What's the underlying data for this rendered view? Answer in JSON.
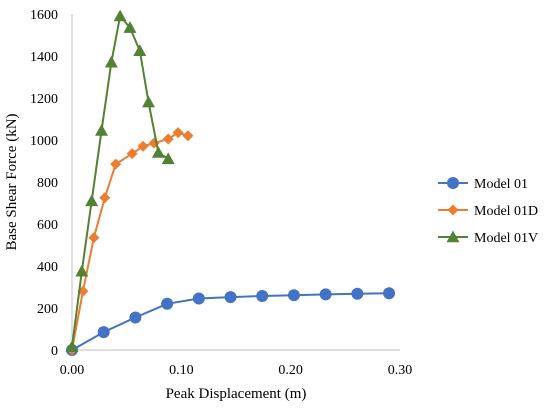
{
  "chart_data": {
    "type": "line",
    "title": "",
    "xlabel": "Peak Displacement (m)",
    "ylabel": "Base Shear Force (kN)",
    "xlim": [
      0,
      0.3
    ],
    "ylim": [
      0,
      1600
    ],
    "x_ticks": [
      0,
      0.1,
      0.2,
      0.3
    ],
    "x_tick_labels": [
      "0.00",
      "0.10",
      "0.20",
      "0.30"
    ],
    "y_ticks": [
      0,
      200,
      400,
      600,
      800,
      1000,
      1200,
      1400,
      1600
    ],
    "y_tick_labels": [
      "0",
      "200",
      "400",
      "600",
      "800",
      "1000",
      "1200",
      "1400",
      "1600"
    ],
    "grid": false,
    "legend_position": "right",
    "series": [
      {
        "name": "Model 01",
        "color": "#4472C4",
        "marker": "circle",
        "points": [
          [
            0.0,
            0
          ],
          [
            0.029,
            85
          ],
          [
            0.058,
            155
          ],
          [
            0.087,
            220
          ],
          [
            0.116,
            245
          ],
          [
            0.145,
            252
          ],
          [
            0.174,
            257
          ],
          [
            0.203,
            261
          ],
          [
            0.232,
            265
          ],
          [
            0.261,
            268
          ],
          [
            0.29,
            270
          ]
        ]
      },
      {
        "name": "Model 01D",
        "color": "#ED7D31",
        "marker": "diamond",
        "points": [
          [
            0.0,
            0
          ],
          [
            0.01,
            280
          ],
          [
            0.02,
            535
          ],
          [
            0.03,
            725
          ],
          [
            0.04,
            885
          ],
          [
            0.055,
            935
          ],
          [
            0.065,
            970
          ],
          [
            0.075,
            985
          ],
          [
            0.088,
            1005
          ],
          [
            0.097,
            1035
          ],
          [
            0.106,
            1020
          ]
        ]
      },
      {
        "name": "Model 01V",
        "color": "#548235",
        "marker": "triangle",
        "points": [
          [
            0.0,
            15
          ],
          [
            0.009,
            375
          ],
          [
            0.018,
            710
          ],
          [
            0.027,
            1045
          ],
          [
            0.036,
            1370
          ],
          [
            0.044,
            1590
          ],
          [
            0.053,
            1535
          ],
          [
            0.062,
            1425
          ],
          [
            0.07,
            1180
          ],
          [
            0.079,
            940
          ],
          [
            0.088,
            910
          ]
        ]
      }
    ]
  }
}
